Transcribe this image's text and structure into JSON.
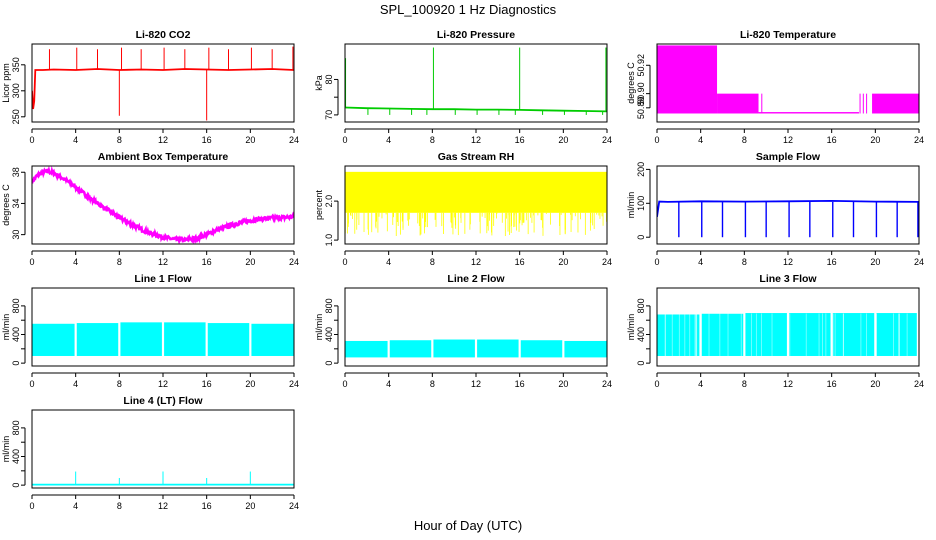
{
  "page": {
    "title": "SPL_100920  1 Hz Diagnostics",
    "xlabel": "Hour of Day (UTC)"
  },
  "colors": {
    "red": "#ff0000",
    "green": "#00cc00",
    "magenta": "#ff00ff",
    "yellow": "#ffff00",
    "blue": "#0000ff",
    "cyan": "#00ffff",
    "axis": "#000000"
  },
  "chart_data": [
    {
      "type": "line",
      "title": "Li-820 CO2",
      "ylabel": "Licor ppm",
      "color": "red",
      "xlim": [
        0,
        24
      ],
      "ylim": [
        240,
        390
      ],
      "xticks": [
        0,
        4,
        8,
        12,
        16,
        20,
        24
      ],
      "yticks": [
        250,
        300,
        350
      ],
      "ytick_labels": [
        "250",
        "300",
        "350"
      ],
      "series": [
        {
          "x": [
            0,
            0.1,
            0.2,
            0.3,
            1,
            2,
            4,
            6,
            8,
            10,
            12,
            14,
            16,
            18,
            20,
            22,
            24
          ],
          "y": [
            300,
            265,
            280,
            340,
            340,
            341,
            340,
            342,
            340,
            341,
            340,
            342,
            341,
            340,
            341,
            342,
            340
          ]
        }
      ],
      "spikes": [
        {
          "x": 8.0,
          "y": 252
        },
        {
          "x": 16.0,
          "y": 243
        },
        {
          "x": 1.6,
          "y": 380
        },
        {
          "x": 4.1,
          "y": 383
        },
        {
          "x": 6.0,
          "y": 380
        },
        {
          "x": 8.2,
          "y": 383
        },
        {
          "x": 10.0,
          "y": 380
        },
        {
          "x": 12.1,
          "y": 383
        },
        {
          "x": 14.0,
          "y": 380
        },
        {
          "x": 16.2,
          "y": 383
        },
        {
          "x": 18.0,
          "y": 380
        },
        {
          "x": 20.1,
          "y": 383
        },
        {
          "x": 22.0,
          "y": 380
        },
        {
          "x": 23.9,
          "y": 385
        }
      ]
    },
    {
      "type": "line",
      "title": "Li-820 Pressure",
      "ylabel": "kPa",
      "color": "green",
      "xlim": [
        0,
        24
      ],
      "ylim": [
        68,
        90
      ],
      "xticks": [
        0,
        4,
        8,
        12,
        16,
        20,
        24
      ],
      "yticks": [
        70,
        75,
        80
      ],
      "ytick_labels": [
        "70",
        "",
        "80"
      ],
      "series": [
        {
          "x": [
            0,
            2,
            4,
            6,
            8,
            10,
            12,
            14,
            16,
            18,
            20,
            22,
            24
          ],
          "y": [
            72.1,
            71.9,
            71.8,
            71.7,
            71.6,
            71.6,
            71.5,
            71.5,
            71.4,
            71.3,
            71.2,
            71.1,
            71.0
          ]
        }
      ],
      "spikes": [
        {
          "x": 0.05,
          "y": 86
        },
        {
          "x": 8.1,
          "y": 89
        },
        {
          "x": 16.0,
          "y": 89
        },
        {
          "x": 23.9,
          "y": 89
        },
        {
          "x": 2.1,
          "y": 70
        },
        {
          "x": 4.1,
          "y": 70
        },
        {
          "x": 6.1,
          "y": 70
        },
        {
          "x": 7.5,
          "y": 70
        },
        {
          "x": 10.1,
          "y": 70
        },
        {
          "x": 12.1,
          "y": 70
        },
        {
          "x": 14.1,
          "y": 70
        },
        {
          "x": 15.6,
          "y": 70
        },
        {
          "x": 18.1,
          "y": 70
        },
        {
          "x": 20.1,
          "y": 70
        },
        {
          "x": 22.1,
          "y": 70
        },
        {
          "x": 23.6,
          "y": 70
        }
      ]
    },
    {
      "type": "area",
      "title": "Li-820 Temperature",
      "ylabel": "degrees C",
      "color": "magenta",
      "xlim": [
        0,
        24
      ],
      "ylim": [
        50.88,
        50.935
      ],
      "xticks": [
        0,
        4,
        8,
        12,
        16,
        20,
        24
      ],
      "yticks": [
        50.89,
        50.9,
        50.92
      ],
      "ytick_labels": [
        "50.89",
        "50.90",
        "50.92"
      ],
      "bands": [
        {
          "x0": 0.0,
          "x1": 5.5,
          "lo": 50.886,
          "hi": 50.934
        },
        {
          "x0": 5.5,
          "x1": 9.3,
          "lo": 50.886,
          "hi": 50.9
        },
        {
          "x0": 9.3,
          "x1": 18.5,
          "lo": 50.886,
          "hi": 50.887
        },
        {
          "x0": 19.7,
          "x1": 24.0,
          "lo": 50.886,
          "hi": 50.9
        }
      ],
      "spikes": [
        {
          "x": 9.6,
          "y": 50.9
        },
        {
          "x": 18.6,
          "y": 50.9
        },
        {
          "x": 18.9,
          "y": 50.9
        },
        {
          "x": 19.2,
          "y": 50.9
        }
      ]
    },
    {
      "type": "line",
      "title": "Ambient Box Temperature",
      "ylabel": "degrees C",
      "color": "magenta",
      "xlim": [
        0,
        24
      ],
      "ylim": [
        28.8,
        38.8
      ],
      "xticks": [
        0,
        4,
        8,
        12,
        16,
        20,
        24
      ],
      "yticks": [
        30,
        34,
        38
      ],
      "ytick_labels": [
        "30",
        "34",
        "38"
      ],
      "noise": 0.5,
      "series": [
        {
          "x": [
            0,
            0.5,
            1,
            1.5,
            2,
            3,
            4,
            5,
            6,
            7,
            8,
            9,
            10,
            11,
            12,
            13,
            14,
            15,
            16,
            17,
            18,
            19,
            20,
            21,
            22,
            23,
            24
          ],
          "y": [
            36.8,
            37.6,
            38.0,
            38.1,
            37.9,
            37.1,
            36.1,
            35.0,
            34.0,
            33.1,
            32.2,
            31.4,
            30.7,
            30.1,
            29.7,
            29.4,
            29.3,
            29.5,
            30.0,
            30.6,
            31.1,
            31.5,
            31.8,
            32.0,
            32.1,
            32.2,
            32.3
          ]
        }
      ]
    },
    {
      "type": "area",
      "title": "Gas Stream RH",
      "ylabel": "percent",
      "color": "yellow",
      "xlim": [
        0,
        24
      ],
      "ylim": [
        0.9,
        2.9
      ],
      "xticks": [
        0,
        4,
        8,
        12,
        16,
        20,
        24
      ],
      "yticks": [
        1.0,
        2.0
      ],
      "ytick_labels": [
        "1.0",
        "2.0"
      ],
      "bands": [
        {
          "x0": 0.0,
          "x1": 24.0,
          "lo": 1.7,
          "hi": 2.75
        }
      ],
      "dips": {
        "min": 1.1,
        "count": 150
      }
    },
    {
      "type": "line",
      "title": "Sample Flow",
      "ylabel": "ml/min",
      "color": "blue",
      "xlim": [
        0,
        24
      ],
      "ylim": [
        -20,
        210
      ],
      "xticks": [
        0,
        4,
        8,
        12,
        16,
        20,
        24
      ],
      "yticks": [
        0,
        100,
        200
      ],
      "ytick_labels": [
        "0",
        "100",
        "200"
      ],
      "series": [
        {
          "x": [
            0,
            0.2,
            1,
            4,
            8,
            12,
            16,
            20,
            24
          ],
          "y": [
            60,
            105,
            104,
            106,
            105,
            106,
            107,
            105,
            104
          ]
        }
      ],
      "dips": [
        2.0,
        4.1,
        6.0,
        8.1,
        10.0,
        12.1,
        14.0,
        16.1,
        18.0,
        20.1,
        22.0,
        23.9
      ],
      "dip_to": 0
    },
    {
      "type": "area",
      "title": "Line 1 Flow",
      "ylabel": "ml/min",
      "color": "cyan",
      "xlim": [
        0,
        24
      ],
      "ylim": [
        -40,
        1050
      ],
      "xticks": [
        0,
        4,
        8,
        12,
        16,
        20,
        24
      ],
      "yticks": [
        0,
        200,
        400,
        600,
        800
      ],
      "ytick_labels": [
        "0",
        "",
        "400",
        "",
        "800"
      ],
      "bands": [
        {
          "x0": 0.0,
          "x1": 3.9,
          "lo": 100,
          "hi": 550
        },
        {
          "x0": 4.1,
          "x1": 7.9,
          "lo": 100,
          "hi": 560
        },
        {
          "x0": 8.1,
          "x1": 11.9,
          "lo": 100,
          "hi": 570
        },
        {
          "x0": 12.1,
          "x1": 15.9,
          "lo": 100,
          "hi": 570
        },
        {
          "x0": 16.1,
          "x1": 19.9,
          "lo": 100,
          "hi": 560
        },
        {
          "x0": 20.1,
          "x1": 24.0,
          "lo": 100,
          "hi": 550
        }
      ]
    },
    {
      "type": "area",
      "title": "Line 2 Flow",
      "ylabel": "ml/min",
      "color": "cyan",
      "xlim": [
        0,
        24
      ],
      "ylim": [
        -40,
        1050
      ],
      "xticks": [
        0,
        4,
        8,
        12,
        16,
        20,
        24
      ],
      "yticks": [
        0,
        200,
        400,
        600,
        800
      ],
      "ytick_labels": [
        "0",
        "",
        "400",
        "",
        "800"
      ],
      "bands": [
        {
          "x0": 0.0,
          "x1": 3.9,
          "lo": 80,
          "hi": 310
        },
        {
          "x0": 4.1,
          "x1": 7.9,
          "lo": 80,
          "hi": 320
        },
        {
          "x0": 8.1,
          "x1": 11.9,
          "lo": 80,
          "hi": 330
        },
        {
          "x0": 12.1,
          "x1": 15.9,
          "lo": 80,
          "hi": 330
        },
        {
          "x0": 16.1,
          "x1": 19.9,
          "lo": 80,
          "hi": 320
        },
        {
          "x0": 20.1,
          "x1": 24.0,
          "lo": 80,
          "hi": 310
        }
      ]
    },
    {
      "type": "area",
      "title": "Line 3 Flow",
      "ylabel": "ml/min",
      "color": "cyan",
      "xlim": [
        0,
        24
      ],
      "ylim": [
        -40,
        1050
      ],
      "xticks": [
        0,
        4,
        8,
        12,
        16,
        20,
        24
      ],
      "yticks": [
        0,
        200,
        400,
        600,
        800
      ],
      "ytick_labels": [
        "0",
        "",
        "400",
        "",
        "800"
      ],
      "bands": [
        {
          "x0": 0.0,
          "x1": 3.9,
          "lo": 100,
          "hi": 680
        },
        {
          "x0": 4.1,
          "x1": 7.9,
          "lo": 100,
          "hi": 690
        },
        {
          "x0": 8.1,
          "x1": 11.9,
          "lo": 100,
          "hi": 700
        },
        {
          "x0": 12.1,
          "x1": 15.9,
          "lo": 100,
          "hi": 700
        },
        {
          "x0": 16.1,
          "x1": 19.9,
          "lo": 100,
          "hi": 700
        },
        {
          "x0": 20.1,
          "x1": 23.8,
          "lo": 100,
          "hi": 700
        }
      ],
      "stripes": {
        "count": 40,
        "to": 100
      }
    },
    {
      "type": "line",
      "title": "Line 4 (LT) Flow",
      "ylabel": "ml/min",
      "color": "cyan",
      "xlim": [
        0,
        24
      ],
      "ylim": [
        -40,
        1050
      ],
      "xticks": [
        0,
        4,
        8,
        12,
        16,
        20,
        24
      ],
      "yticks": [
        0,
        200,
        400,
        600,
        800
      ],
      "ytick_labels": [
        "0",
        "",
        "400",
        "",
        "800"
      ],
      "series": [
        {
          "x": [
            0,
            24
          ],
          "y": [
            8,
            8
          ]
        }
      ],
      "spikes": [
        {
          "x": 4.0,
          "y": 190
        },
        {
          "x": 8.0,
          "y": 100
        },
        {
          "x": 12.0,
          "y": 190
        },
        {
          "x": 16.0,
          "y": 100
        },
        {
          "x": 20.0,
          "y": 190
        },
        {
          "x": 24.0,
          "y": 100
        }
      ]
    }
  ]
}
